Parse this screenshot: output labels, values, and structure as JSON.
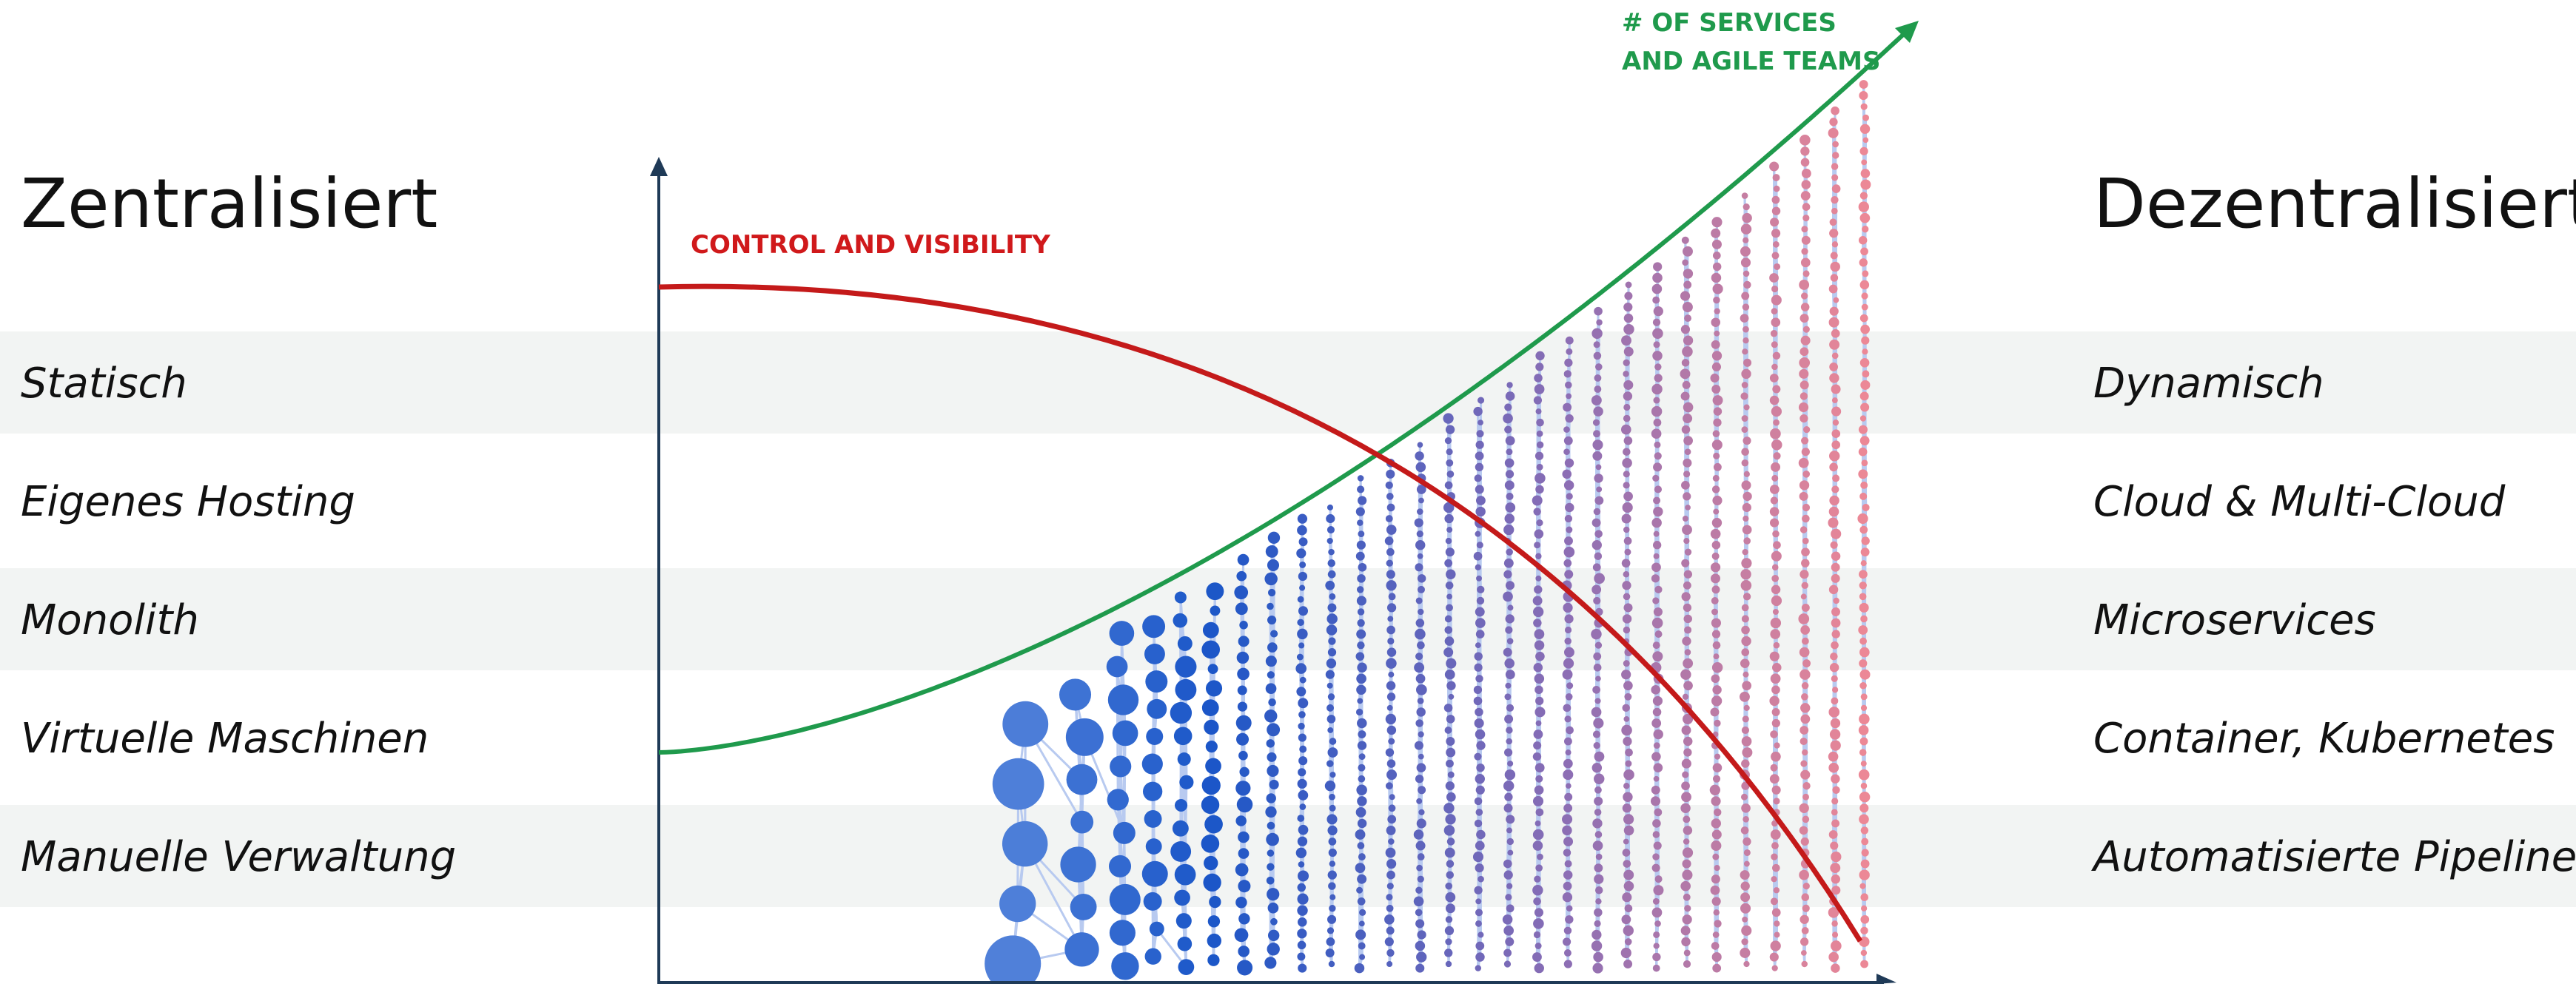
{
  "left": {
    "title": "Zentralisiert",
    "rows": [
      "Statisch",
      "Eigenes Hosting",
      "Monolith",
      "Virtuelle Maschinen",
      "Manuelle Verwaltung"
    ]
  },
  "right": {
    "title": "Dezentralisiert",
    "rows": [
      "Dynamisch",
      "Cloud & Multi-Cloud",
      "Microservices",
      "Container, Kubernetes",
      "Automatisierte Pipelines"
    ]
  },
  "control_label": "CONTROL AND VISIBILITY",
  "services_label": [
    "# OF SERVICES",
    "AND AGILE TEAMS"
  ]
}
